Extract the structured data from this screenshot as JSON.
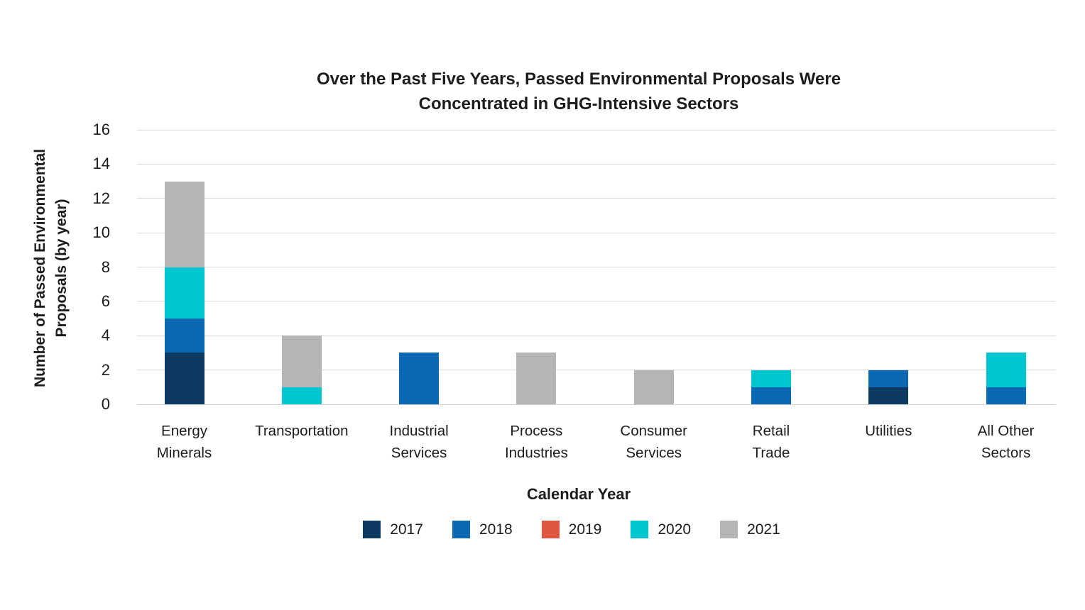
{
  "chart_data": {
    "type": "bar",
    "stacked": true,
    "title": "Over the Past Five Years, Passed Environmental Proposals Were Concentrated in GHG-Intensive Sectors",
    "title_lines": [
      "Over the Past Five Years, Passed Environmental Proposals Were",
      "Concentrated in GHG-Intensive Sectors"
    ],
    "xlabel": "Calendar Year",
    "ylabel": "Number of Passed Environmental Proposals (by year)",
    "ylabel_lines": [
      "Number of Passed Environmental",
      "Proposals (by year)"
    ],
    "ylim": [
      0,
      16
    ],
    "yticks": [
      0,
      2,
      4,
      6,
      8,
      10,
      12,
      14,
      16
    ],
    "grid": "horizontal",
    "legend_position": "bottom",
    "categories": [
      "Energy Minerals",
      "Transportation",
      "Industrial Services",
      "Process Industries",
      "Consumer Services",
      "Retail Trade",
      "Utilities",
      "All Other Sectors"
    ],
    "category_label_lines": [
      [
        "Energy",
        "Minerals"
      ],
      [
        "Transportation"
      ],
      [
        "Industrial",
        "Services"
      ],
      [
        "Process",
        "Industries"
      ],
      [
        "Consumer",
        "Services"
      ],
      [
        "Retail",
        "Trade"
      ],
      [
        "Utilities"
      ],
      [
        "All Other",
        "Sectors"
      ]
    ],
    "series": [
      {
        "name": "2017",
        "color": "#0d3a60",
        "values": [
          3,
          0,
          0,
          0,
          0,
          0,
          1,
          0
        ]
      },
      {
        "name": "2018",
        "color": "#0b68b2",
        "values": [
          2,
          0,
          3,
          0,
          0,
          1,
          1,
          1
        ]
      },
      {
        "name": "2019",
        "color": "#df5742",
        "values": [
          0,
          0,
          0,
          0,
          0,
          0,
          0,
          0
        ]
      },
      {
        "name": "2020",
        "color": "#00c6d0",
        "values": [
          3,
          1,
          0,
          0,
          0,
          1,
          0,
          2
        ]
      },
      {
        "name": "2021",
        "color": "#b3b5b7",
        "values": [
          5,
          3,
          0,
          3,
          2,
          0,
          0,
          0
        ]
      }
    ]
  },
  "colors": {
    "gridline": "#dadada",
    "baseline": "#d2d2d2",
    "text": "#1c1c1c"
  }
}
